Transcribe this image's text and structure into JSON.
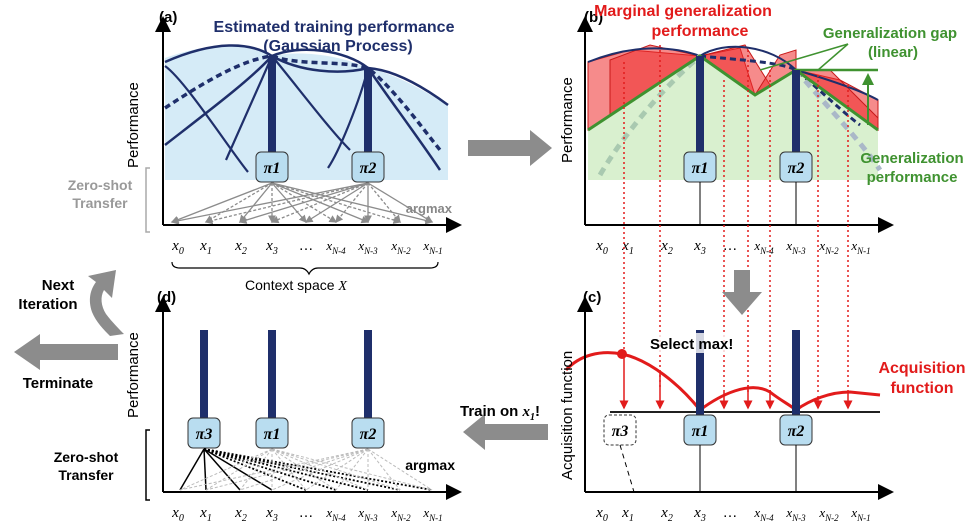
{
  "panels": {
    "a": {
      "tag": "(a)",
      "ylabel": "Performance",
      "gp_title_1": "Estimated training performance",
      "gp_title_2": "(Gaussian Process)",
      "zero_shot_1": "Zero-shot",
      "zero_shot_2": "Transfer",
      "argmax": "argmax",
      "context_label": "Context space ",
      "context_symbol": "X"
    },
    "b": {
      "tag": "(b)",
      "ylabel": "Performance",
      "mg_1": "Marginal generalization",
      "mg_2": "performance",
      "gap_1": "Generalization gap",
      "gap_2": "(linear)",
      "gen_1": "Generalization",
      "gen_2": "performance"
    },
    "c": {
      "tag": "(c)",
      "ylabel": "Acquisition function",
      "select": "Select max!",
      "acq_1": "Acquisition",
      "acq_2": "function"
    },
    "d": {
      "tag": "(d)",
      "ylabel": "Performance",
      "zero_shot_1": "Zero-shot",
      "zero_shot_2": "Transfer",
      "argmax": "argmax"
    }
  },
  "flow": {
    "next_1": "Next",
    "next_2": "Iteration",
    "terminate": "Terminate",
    "train_on": "Train on "
  },
  "ticks": [
    "x0",
    "x1",
    "x2",
    "x3",
    "…",
    "xN-4",
    "xN-3",
    "xN-2",
    "xN-1"
  ],
  "policies": {
    "p1": "π1",
    "p2": "π2",
    "p3": "π3"
  },
  "colors": {
    "navy": "#1f2f6b",
    "red": "#e21b1b",
    "green": "#3f9230",
    "gray": "#8c8c8c",
    "policy_fill": "#b9ddf0",
    "gp_band": "#d5ebf7",
    "gen_band": "#d9f0cf"
  }
}
